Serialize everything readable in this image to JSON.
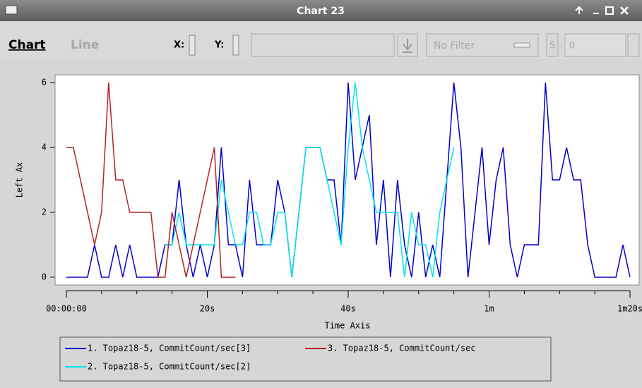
{
  "window": {
    "title": "Chart 23",
    "toolbar": {
      "chart_tab": "Chart",
      "line_tab": "Line",
      "x_label": "X:",
      "y_label": "Y:",
      "filter": "No Filter",
      "s_button": "S",
      "spin_sep": ":",
      "spin_value": "0"
    }
  },
  "chart_data": {
    "type": "line",
    "x_label": "Time Axis",
    "y_label": "Left Ax",
    "x": [
      0,
      1,
      2,
      3,
      4,
      5,
      6,
      7,
      8,
      9,
      10,
      11,
      12,
      13,
      14,
      15,
      16,
      17,
      18,
      19,
      20,
      21,
      22,
      23,
      24,
      25,
      26,
      27,
      28,
      29,
      30,
      31,
      32,
      33,
      34,
      35,
      36,
      37,
      38,
      39,
      40,
      41,
      42,
      43,
      44,
      45,
      46,
      47,
      48,
      49,
      50,
      51,
      52,
      53,
      54,
      55,
      56,
      57,
      58,
      59,
      60,
      61,
      62,
      63,
      64,
      65,
      66,
      67,
      68,
      69,
      70,
      71,
      72,
      73,
      74,
      75,
      76,
      77,
      78,
      79,
      80
    ],
    "xlim": [
      -1.6,
      81.3
    ],
    "xticks": [
      {
        "value": 0,
        "label": "00:00:00"
      },
      {
        "value": 20,
        "label": "20s"
      },
      {
        "value": 40,
        "label": "40s"
      },
      {
        "value": 60,
        "label": "1m"
      },
      {
        "value": 80,
        "label": "1m20s"
      }
    ],
    "ylim": [
      -0.24,
      6.24
    ],
    "yticks": [
      0,
      2,
      4,
      6
    ],
    "series": [
      {
        "name": "1.  Topaz18-5, CommitCount/sec[3]",
        "color": "#0000cc",
        "values": [
          0,
          0,
          0,
          0,
          1,
          0,
          0,
          1,
          0,
          1,
          0,
          0,
          0,
          0,
          1,
          1,
          3,
          1,
          0,
          1,
          0,
          1,
          4,
          1,
          1,
          0,
          3,
          1,
          1,
          1,
          3,
          2,
          0,
          2,
          4,
          4,
          4,
          3,
          3,
          1,
          6,
          3,
          4,
          5,
          1,
          3,
          0,
          3,
          1,
          0,
          2,
          0,
          1,
          0,
          3,
          6,
          4,
          0,
          2,
          4,
          1,
          3,
          4,
          1,
          0,
          1,
          1,
          1,
          6,
          3,
          3,
          4,
          3,
          3,
          1,
          0,
          0,
          0,
          0,
          1,
          0
        ]
      },
      {
        "name": "2.  Topaz18-5, CommitCount/sec[2]",
        "color": "#00e5ee",
        "values": [
          null,
          null,
          null,
          null,
          null,
          null,
          null,
          null,
          null,
          null,
          null,
          null,
          null,
          null,
          1,
          1,
          2,
          1,
          1,
          1,
          1,
          1,
          3,
          2,
          1,
          1,
          2,
          2,
          1,
          1,
          2,
          2,
          0,
          2,
          4,
          4,
          4,
          3,
          2,
          1,
          4,
          6,
          4,
          3,
          2,
          2,
          2,
          2,
          0,
          2,
          1,
          1,
          0,
          2,
          3,
          4,
          null,
          null,
          null,
          null,
          null,
          null,
          null,
          null,
          null,
          null,
          null,
          null,
          null,
          null,
          null,
          null,
          null,
          null,
          null,
          null,
          null,
          null,
          null,
          null,
          null
        ]
      },
      {
        "name": "3.  Topaz18-5, CommitCount/sec",
        "color": "#b22222",
        "values": [
          4,
          4,
          3,
          2,
          1,
          2,
          6,
          3,
          3,
          2,
          2,
          2,
          2,
          0,
          0,
          2,
          1,
          0,
          1,
          2,
          3,
          4,
          0,
          0,
          0,
          null,
          null,
          null,
          null,
          null,
          null,
          null,
          null,
          null,
          null,
          null,
          null,
          null,
          null,
          null,
          null,
          null,
          null,
          null,
          null,
          null,
          null,
          null,
          null,
          null,
          null,
          null,
          null,
          null,
          null,
          null,
          null,
          null,
          null,
          null,
          null,
          null,
          null,
          null,
          null,
          null,
          null,
          null,
          null,
          null,
          null,
          null,
          null,
          null,
          null,
          null,
          null,
          null,
          null,
          null,
          null
        ]
      }
    ]
  }
}
